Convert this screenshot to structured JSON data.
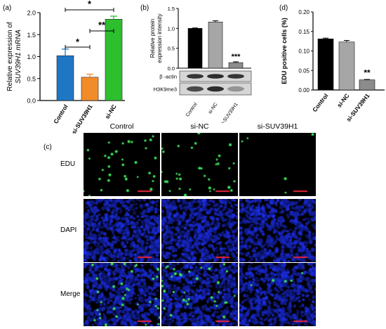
{
  "panels": {
    "a": "(a)",
    "b": "(b)",
    "c": "(c)",
    "d": "(d)"
  },
  "colors": {
    "control_a": "#1f77c4",
    "si_suv_a": "#f28c28",
    "si_nc_a": "#2dbf2d",
    "control_b": "#000000",
    "si_nc_b": "#a6a6a6",
    "si_suv_b": "#8c8c8c",
    "scale_bar": "#e8243b",
    "edu_cells": "#2bd44a",
    "dapi_cells": "#2638d8"
  },
  "chart_data": [
    {
      "id": "a",
      "type": "bar",
      "categories": [
        "Control",
        "si-SUV39H1",
        "si-NC"
      ],
      "values": [
        1.02,
        0.53,
        1.85
      ],
      "errors": [
        0.15,
        0.07,
        0.07
      ],
      "ylabel_line1": "Relative expression of",
      "ylabel_line2": "SUV39H1 mRNA",
      "ylim": [
        0,
        2.0
      ],
      "yticks": [
        "0.0",
        "0.5",
        "1.0",
        "1.5",
        "2.0"
      ],
      "significance": [
        {
          "from": 0,
          "to": 1,
          "label": "*"
        },
        {
          "from": 1,
          "to": 2,
          "label": "**"
        },
        {
          "from": 0,
          "to": 2,
          "label": "*"
        }
      ]
    },
    {
      "id": "b",
      "type": "bar",
      "categories": [
        "Control",
        "si-NC",
        "si-SUV39H1"
      ],
      "values": [
        1.0,
        1.16,
        0.14
      ],
      "errors": [
        0.01,
        0.03,
        0.02
      ],
      "ylabel_line1": "Relative protein",
      "ylabel_line2": "expression intensity",
      "ylim": [
        0,
        1.5
      ],
      "yticks": [
        "0.0",
        "0.5",
        "1.0",
        "1.5"
      ],
      "annotations": [
        {
          "index": 2,
          "label": "***"
        }
      ],
      "blot_labels": [
        "β -actin",
        "H3K9me3"
      ]
    },
    {
      "id": "d",
      "type": "bar",
      "categories": [
        "Control",
        "si-NC",
        "si-SUV39H1"
      ],
      "values": [
        0.131,
        0.123,
        0.026
      ],
      "errors": [
        0.002,
        0.004,
        0.001
      ],
      "ylabel": "EDU positive cells (%)",
      "ylim": [
        0,
        0.2
      ],
      "yticks": [
        "0.00",
        "0.05",
        "0.10",
        "0.15",
        "0.20"
      ],
      "annotations": [
        {
          "index": 2,
          "label": "**"
        }
      ]
    }
  ],
  "microscopy": {
    "columns": [
      "Control",
      "si-NC",
      "si-SUV39H1"
    ],
    "rows": [
      "EDU",
      "DAPI",
      "Merge"
    ]
  }
}
